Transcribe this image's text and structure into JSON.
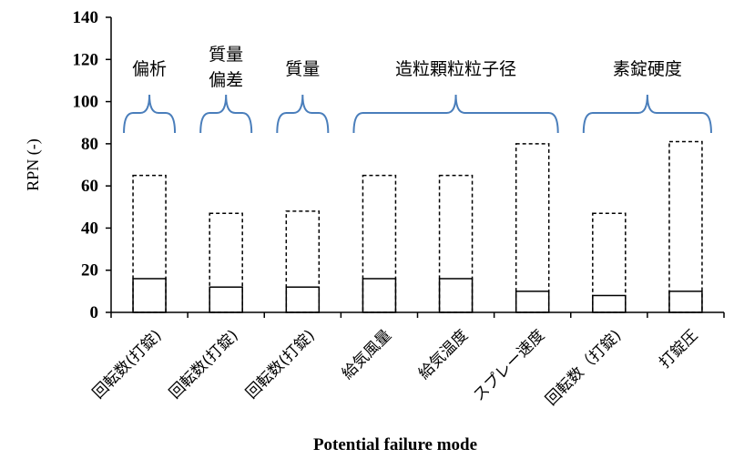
{
  "chart_data": {
    "type": "bar",
    "xlabel": "Potential failure mode",
    "ylabel": "RPN (-)",
    "ylim": [
      0,
      140
    ],
    "yticks": [
      0,
      20,
      40,
      60,
      80,
      100,
      120,
      140
    ],
    "grid": false,
    "legend": "none",
    "categories": [
      "回転数(打錠)",
      "回転数(打錠)",
      "回転数(打錠)",
      "給気風量",
      "給気温度",
      "スプレー速度",
      "回転数（打錠)",
      "打錠圧"
    ],
    "series": [
      {
        "style": "dashed-outline",
        "values": [
          65,
          47,
          48,
          65,
          65,
          80,
          47,
          81
        ]
      },
      {
        "style": "solid-outline",
        "values": [
          16,
          12,
          12,
          16,
          16,
          10,
          8,
          10
        ]
      }
    ],
    "groups": [
      {
        "label": "偏析",
        "range": [
          0,
          0
        ]
      },
      {
        "label": "質量偏差",
        "range": [
          1,
          1
        ]
      },
      {
        "label": "質量",
        "range": [
          2,
          2
        ]
      },
      {
        "label": "造粒顆粒粒子径",
        "range": [
          3,
          5
        ]
      },
      {
        "label": "素錠硬度",
        "range": [
          6,
          7
        ]
      }
    ],
    "colors": {
      "bracket": "#4a7ebb",
      "axis": "#000000",
      "bar_outline": "#000000"
    }
  }
}
